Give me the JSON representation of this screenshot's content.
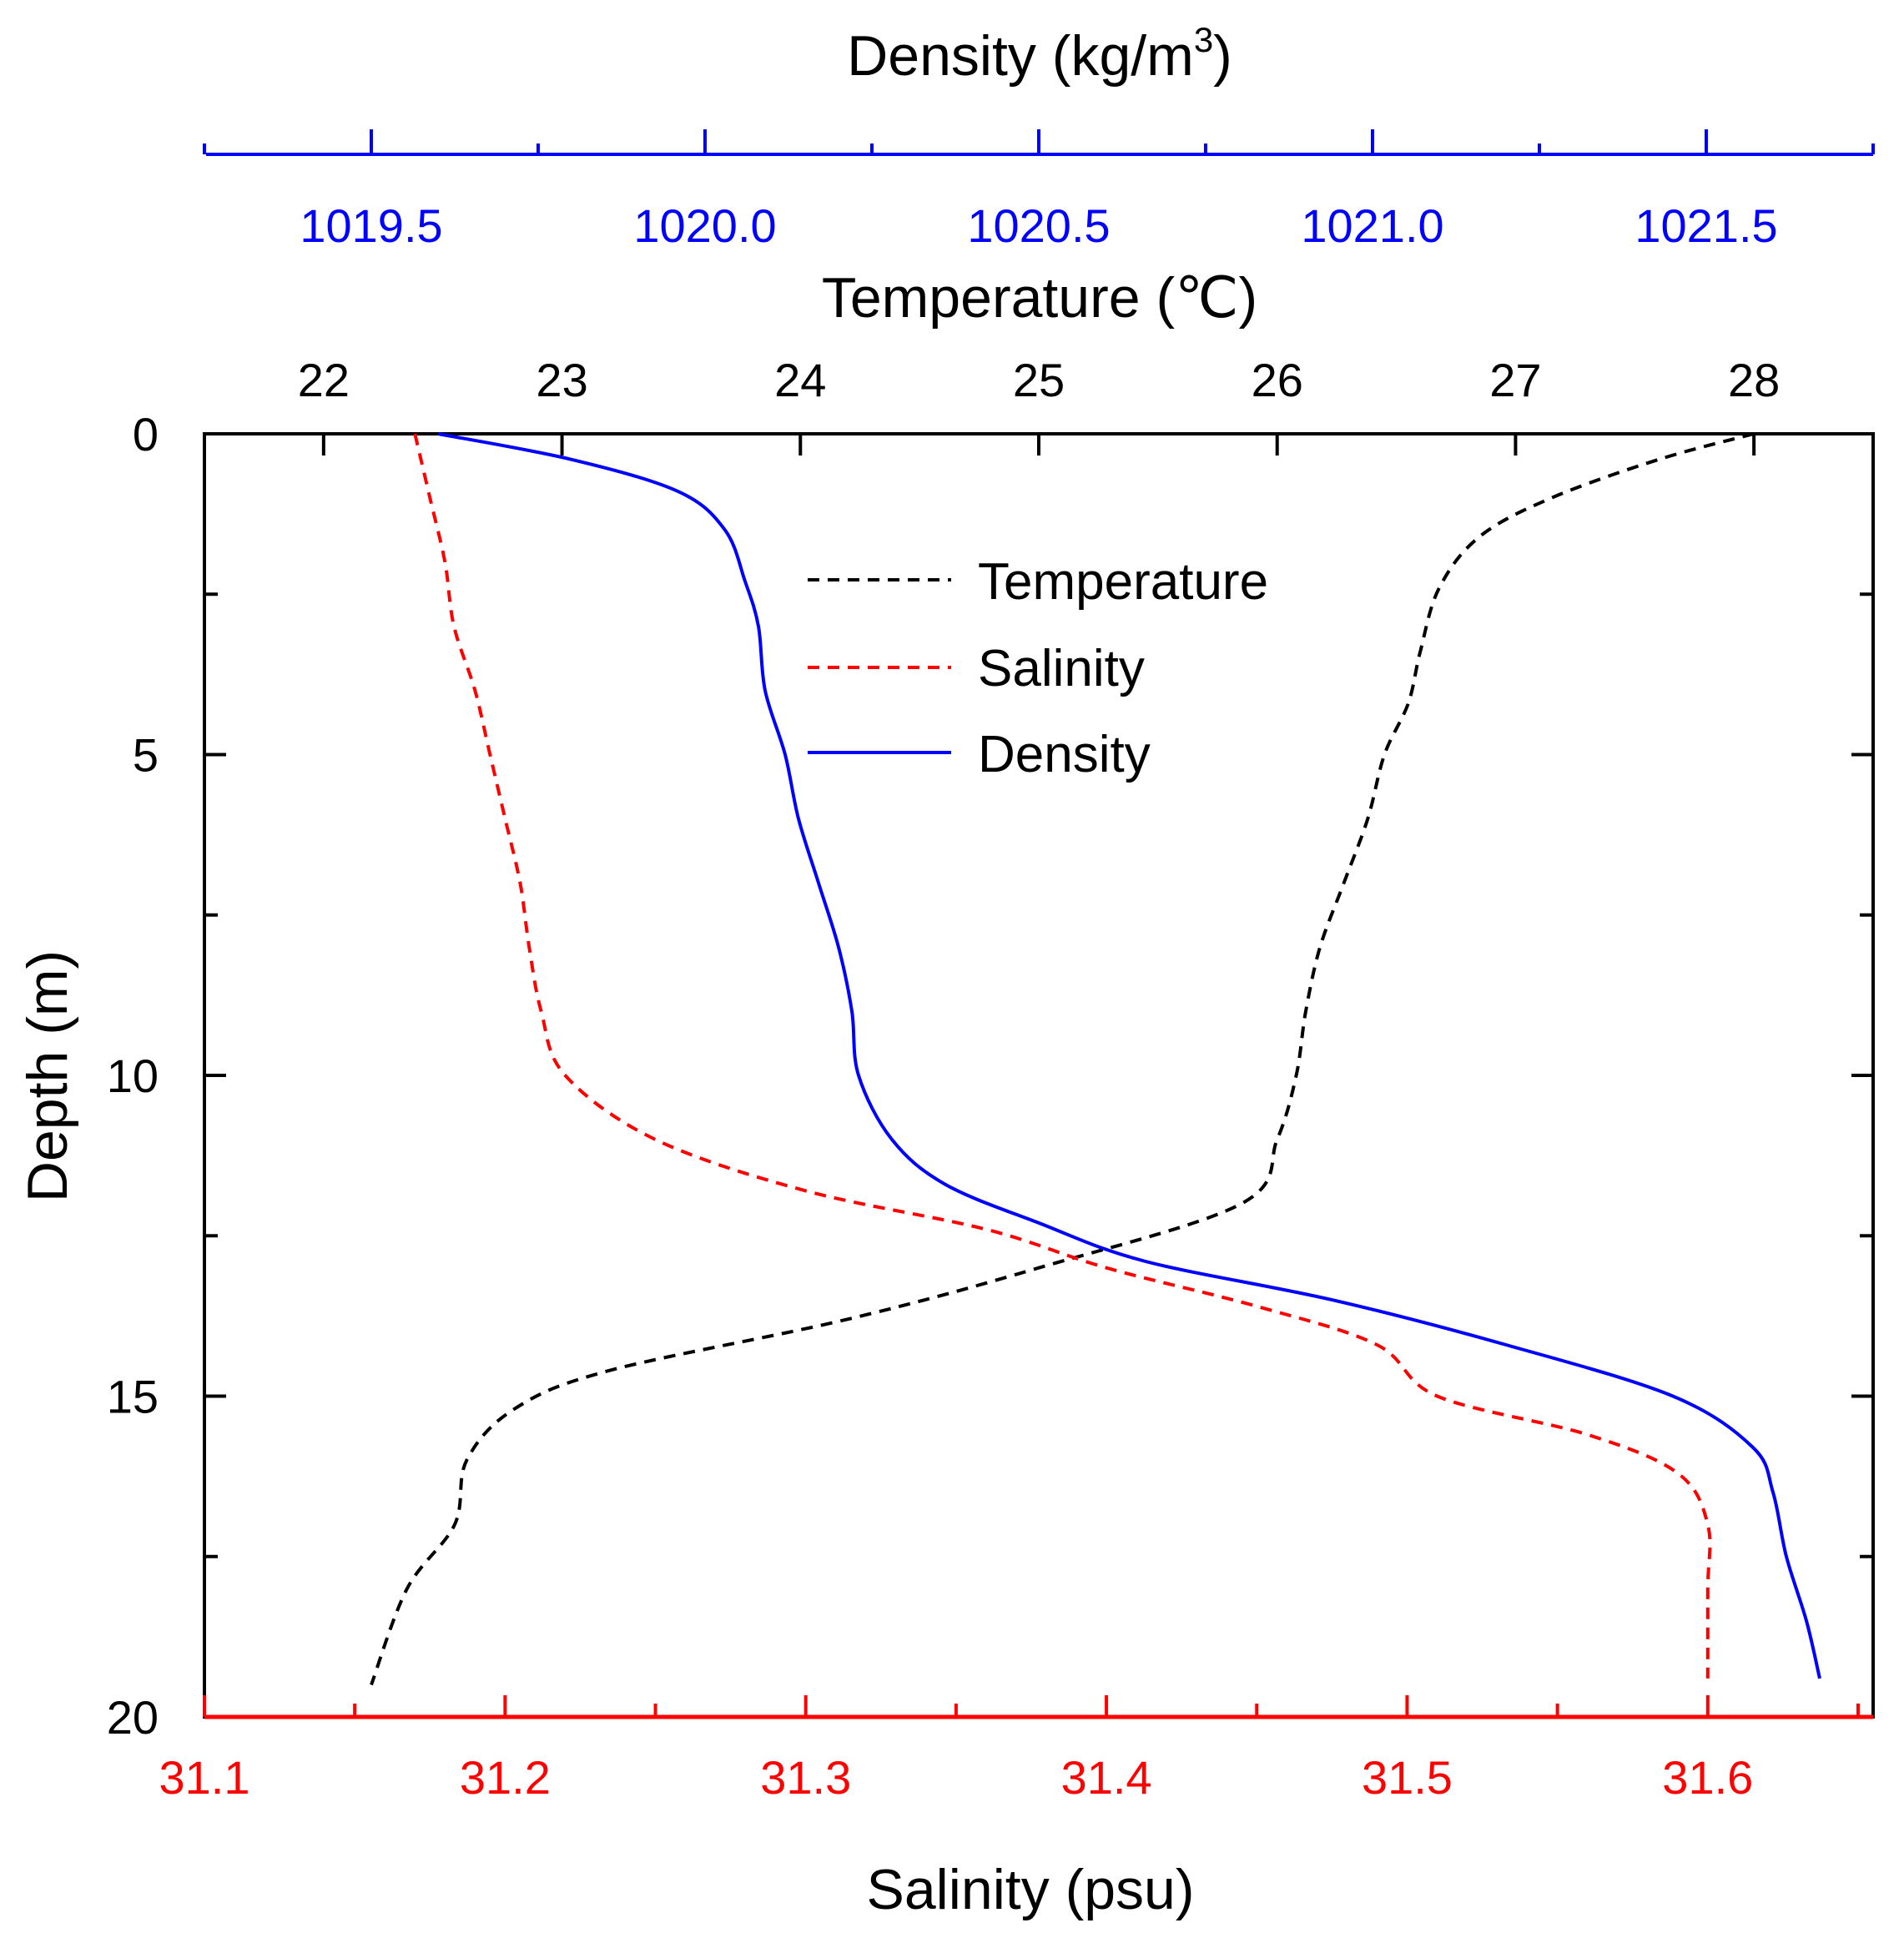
{
  "chart_data": {
    "type": "line",
    "orientation": "depth-profile",
    "colors": {
      "temperature": "#000000",
      "salinity": "#ff0000",
      "density": "#0000ff"
    },
    "axes": {
      "depth": {
        "label": "Depth (m)",
        "range": [
          0,
          20
        ],
        "reversed": true,
        "ticks": [
          "0",
          "5",
          "10",
          "15",
          "20"
        ]
      },
      "temperature": {
        "label": "Temperature (℃)",
        "range": [
          21.5,
          28.5
        ],
        "ticks": [
          "22",
          "23",
          "24",
          "25",
          "26",
          "27",
          "28"
        ]
      },
      "density": {
        "label": "Density (kg/m",
        "label_sup": "3",
        "label_close": ")",
        "range": [
          1019.25,
          1021.75
        ],
        "ticks": [
          "1019.5",
          "1020.0",
          "1020.5",
          "1021.0",
          "1021.5"
        ]
      },
      "salinity": {
        "label": "Salinity (psu)",
        "range": [
          31.1,
          31.655
        ],
        "ticks": [
          "31.1",
          "31.2",
          "31.3",
          "31.4",
          "31.5",
          "31.6"
        ]
      }
    },
    "legend": {
      "position": "top-center",
      "entries": [
        "Temperature",
        "Salinity",
        "Density"
      ]
    },
    "series": [
      {
        "name": "Temperature",
        "axis": "temperature",
        "style": "dashed",
        "points": [
          [
            28.0,
            0
          ],
          [
            27.6,
            0.4
          ],
          [
            27.15,
            1.0
          ],
          [
            26.85,
            1.6
          ],
          [
            26.68,
            2.4
          ],
          [
            26.6,
            3.4
          ],
          [
            26.55,
            4.2
          ],
          [
            26.45,
            5.0
          ],
          [
            26.38,
            6.0
          ],
          [
            26.28,
            7.0
          ],
          [
            26.18,
            8.0
          ],
          [
            26.12,
            9.0
          ],
          [
            26.08,
            10.0
          ],
          [
            26.0,
            11.0
          ],
          [
            25.85,
            12.0
          ],
          [
            25.0,
            13.0
          ],
          [
            24.2,
            13.8
          ],
          [
            23.2,
            14.6
          ],
          [
            22.8,
            15.2
          ],
          [
            22.6,
            16.0
          ],
          [
            22.55,
            17.0
          ],
          [
            22.35,
            18.0
          ],
          [
            22.2,
            19.5
          ]
        ]
      },
      {
        "name": "Salinity",
        "axis": "salinity",
        "style": "dashed",
        "points": [
          [
            31.17,
            0
          ],
          [
            31.175,
            1.0
          ],
          [
            31.18,
            2.0
          ],
          [
            31.183,
            3.0
          ],
          [
            31.19,
            4.0
          ],
          [
            31.195,
            5.0
          ],
          [
            31.2,
            6.0
          ],
          [
            31.205,
            7.0
          ],
          [
            31.208,
            8.0
          ],
          [
            31.212,
            9.0
          ],
          [
            31.22,
            10.0
          ],
          [
            31.25,
            11.0
          ],
          [
            31.3,
            11.8
          ],
          [
            31.36,
            12.4
          ],
          [
            31.4,
            13.0
          ],
          [
            31.45,
            13.6
          ],
          [
            31.49,
            14.2
          ],
          [
            31.51,
            15.0
          ],
          [
            31.56,
            15.6
          ],
          [
            31.59,
            16.2
          ],
          [
            31.6,
            17.0
          ],
          [
            31.6,
            18.0
          ],
          [
            31.6,
            19.4
          ]
        ]
      },
      {
        "name": "Density",
        "axis": "density",
        "style": "solid",
        "points": [
          [
            1019.6,
            0
          ],
          [
            1019.8,
            0.4
          ],
          [
            1019.96,
            0.9
          ],
          [
            1020.03,
            1.5
          ],
          [
            1020.06,
            2.3
          ],
          [
            1020.08,
            3.0
          ],
          [
            1020.09,
            4.0
          ],
          [
            1020.12,
            5.0
          ],
          [
            1020.14,
            6.0
          ],
          [
            1020.17,
            7.0
          ],
          [
            1020.2,
            8.0
          ],
          [
            1020.22,
            9.0
          ],
          [
            1020.23,
            10.0
          ],
          [
            1020.28,
            11.0
          ],
          [
            1020.36,
            11.7
          ],
          [
            1020.5,
            12.3
          ],
          [
            1020.66,
            12.9
          ],
          [
            1020.94,
            13.5
          ],
          [
            1021.2,
            14.2
          ],
          [
            1021.45,
            15.0
          ],
          [
            1021.57,
            15.8
          ],
          [
            1021.6,
            16.5
          ],
          [
            1021.62,
            17.5
          ],
          [
            1021.65,
            18.5
          ],
          [
            1021.67,
            19.4
          ]
        ]
      }
    ]
  }
}
